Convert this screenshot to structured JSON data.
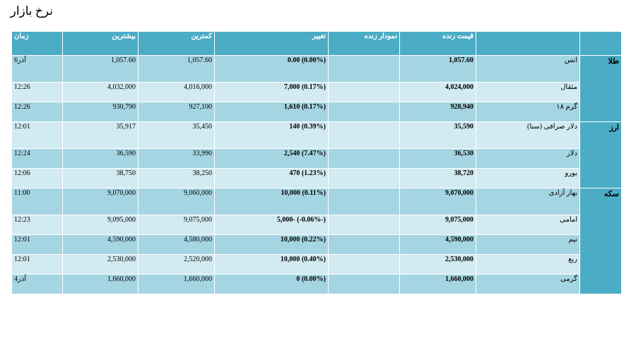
{
  "page": {
    "title": "نرخ بازار"
  },
  "table": {
    "headers": {
      "group": "",
      "name": "",
      "live_price": "قیمت زنده",
      "live_chart": "نمودار زنده",
      "change": "تغییر",
      "low": "کمترین",
      "high": "بیشترین",
      "time": "زمان"
    },
    "groups": [
      {
        "label": "طلا",
        "rows": [
          {
            "name": "انس",
            "price": "1,057.60",
            "chart": "",
            "change": "0.00 (0.00%)",
            "low": "1,057.60",
            "high": "1,057.60",
            "time": "6آذر"
          },
          {
            "name": "مثقال",
            "price": "4,024,000",
            "chart": "",
            "change": "7,000 (0.17%)",
            "low": "4,016,000",
            "high": "4,032,000",
            "time": "12:26"
          },
          {
            "name": "گرم ۱۸",
            "price": "928,940",
            "chart": "",
            "change": "1,610 (0.17%)",
            "low": "927,100",
            "high": "930,790",
            "time": "12:26"
          }
        ]
      },
      {
        "label": "ارز",
        "rows": [
          {
            "name": "دلار صرافی (سنا)",
            "price": "35,590",
            "chart": "",
            "change": "140 (0.39%)",
            "low": "35,450",
            "high": "35,917",
            "time": "12:01"
          },
          {
            "name": "دلار",
            "price": "36,530",
            "chart": "",
            "change": "2,540 (7.47%)",
            "low": "33,990",
            "high": "36,590",
            "time": "12:24"
          },
          {
            "name": "یورو",
            "price": "38,720",
            "chart": "",
            "change": "470 (1.23%)",
            "low": "38,250",
            "high": "38,750",
            "time": "12:06"
          }
        ]
      },
      {
        "label": "سکه",
        "rows": [
          {
            "name": "بهار آزادی",
            "price": "9,070,000",
            "chart": "",
            "change": "10,000 (0.11%)",
            "low": "9,060,000",
            "high": "9,070,000",
            "time": "11:00"
          },
          {
            "name": "امامی",
            "price": "9,075,000",
            "chart": "",
            "change": "5,000- (-0.06%-)",
            "low": "9,075,000",
            "high": "9,095,000",
            "time": "12:23"
          },
          {
            "name": "نیم",
            "price": "4,590,000",
            "chart": "",
            "change": "10,000 (0.22%)",
            "low": "4,580,000",
            "high": "4,590,000",
            "time": "12:01"
          },
          {
            "name": "ربع",
            "price": "2,530,000",
            "chart": "",
            "change": "10,000 (0.40%)",
            "low": "2,520,000",
            "high": "2,530,000",
            "time": "12:01"
          },
          {
            "name": "گرمی",
            "price": "1,660,000",
            "chart": "",
            "change": "0 (0.00%)",
            "low": "1,660,000",
            "high": "1,660,000",
            "time": "4آذر"
          }
        ]
      }
    ]
  }
}
